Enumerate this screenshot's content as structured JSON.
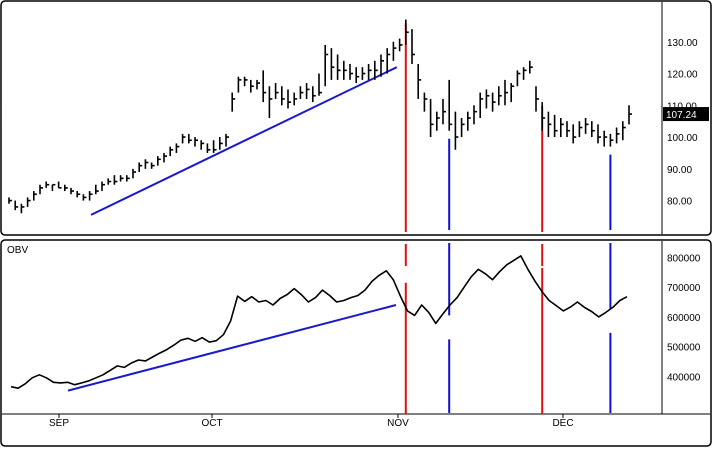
{
  "chart_data": [
    {
      "type": "ohlc",
      "panel": "price",
      "title": "",
      "last_price_label": "107.24",
      "y_ticks": [
        "80.00",
        "90.00",
        "100.00",
        "110.00",
        "120.00",
        "130.00"
      ],
      "ylim": [
        72,
        140
      ],
      "bars_per_month_note": null,
      "bars": [
        [
          81,
          79,
          80
        ],
        [
          80,
          77,
          78
        ],
        [
          79,
          76,
          78
        ],
        [
          81,
          78,
          80
        ],
        [
          83,
          80,
          82
        ],
        [
          85,
          82,
          84
        ],
        [
          86,
          84,
          85
        ],
        [
          85,
          83,
          85
        ],
        [
          86,
          84,
          84
        ],
        [
          85,
          83,
          84
        ],
        [
          84,
          82,
          83
        ],
        [
          83,
          81,
          82
        ],
        [
          82,
          80,
          81
        ],
        [
          83,
          80,
          82
        ],
        [
          85,
          82,
          83
        ],
        [
          86,
          83,
          85
        ],
        [
          87,
          85,
          86
        ],
        [
          88,
          85,
          86
        ],
        [
          88,
          86,
          87
        ],
        [
          88,
          86,
          87
        ],
        [
          90,
          87,
          89
        ],
        [
          92,
          89,
          91
        ],
        [
          93,
          90,
          92
        ],
        [
          92,
          90,
          91
        ],
        [
          94,
          91,
          93
        ],
        [
          95,
          92,
          94
        ],
        [
          97,
          94,
          96
        ],
        [
          98,
          95,
          97
        ],
        [
          101,
          98,
          100
        ],
        [
          101,
          98,
          99
        ],
        [
          100,
          97,
          99
        ],
        [
          99,
          96,
          98
        ],
        [
          98,
          95,
          96
        ],
        [
          99,
          95,
          96
        ],
        [
          100,
          96,
          98
        ],
        [
          101,
          97,
          100
        ],
        [
          114,
          108,
          112
        ],
        [
          119,
          114,
          118
        ],
        [
          119,
          116,
          118
        ],
        [
          118,
          114,
          116
        ],
        [
          118,
          115,
          117
        ],
        [
          121,
          111,
          114
        ],
        [
          116,
          106,
          112
        ],
        [
          117,
          112,
          114
        ],
        [
          116,
          110,
          112
        ],
        [
          115,
          109,
          111
        ],
        [
          114,
          110,
          112
        ],
        [
          116,
          112,
          114
        ],
        [
          117,
          112,
          115
        ],
        [
          116,
          111,
          113
        ],
        [
          120,
          113,
          114
        ],
        [
          129,
          116,
          126
        ],
        [
          128,
          118,
          122
        ],
        [
          126,
          118,
          121
        ],
        [
          124,
          118,
          121
        ],
        [
          123,
          118,
          120
        ],
        [
          122,
          117,
          119
        ],
        [
          122,
          118,
          120
        ],
        [
          123,
          118,
          121
        ],
        [
          124,
          118,
          121
        ],
        [
          126,
          119,
          124
        ],
        [
          128,
          120,
          126
        ],
        [
          130,
          124,
          128
        ],
        [
          131,
          127,
          129
        ],
        [
          137,
          129,
          133
        ],
        [
          134,
          123,
          126
        ],
        [
          123,
          112,
          118
        ],
        [
          114,
          108,
          112
        ],
        [
          112,
          100,
          104
        ],
        [
          108,
          102,
          106
        ],
        [
          112,
          104,
          108
        ],
        [
          118,
          102,
          104
        ],
        [
          108,
          96,
          100
        ],
        [
          106,
          100,
          104
        ],
        [
          108,
          102,
          106
        ],
        [
          110,
          104,
          108
        ],
        [
          114,
          106,
          112
        ],
        [
          115,
          109,
          113
        ],
        [
          114,
          108,
          111
        ],
        [
          116,
          110,
          113
        ],
        [
          118,
          110,
          114
        ],
        [
          117,
          111,
          116
        ],
        [
          121,
          116,
          120
        ],
        [
          122,
          118,
          121
        ],
        [
          124,
          120,
          122
        ],
        [
          116,
          108,
          112
        ],
        [
          111,
          102,
          106
        ],
        [
          108,
          100,
          104
        ],
        [
          107,
          100,
          102
        ],
        [
          106,
          100,
          104
        ],
        [
          105,
          100,
          102
        ],
        [
          104,
          98,
          100
        ],
        [
          105,
          100,
          103
        ],
        [
          106,
          101,
          104
        ],
        [
          105,
          100,
          102
        ],
        [
          104,
          98,
          100
        ],
        [
          102,
          97,
          100
        ],
        [
          101,
          97,
          99
        ],
        [
          103,
          98,
          101
        ],
        [
          105,
          99,
          103
        ],
        [
          110,
          104,
          107.24
        ]
      ],
      "trendline": {
        "from": [
          0,
          75.5
        ],
        "to": [
          59,
          122
        ],
        "color": "#1a1acc"
      },
      "markers": [
        {
          "type": "peak",
          "bar": 64,
          "color": "#e01010"
        },
        {
          "type": "trough",
          "bar": 71,
          "color": "#1010d0"
        },
        {
          "type": "peak",
          "bar": 86,
          "color": "#e01010"
        },
        {
          "type": "trough",
          "bar": 97,
          "color": "#1010d0"
        }
      ]
    },
    {
      "type": "line",
      "panel": "indicator",
      "label": "OBV",
      "y_ticks": [
        "400000",
        "500000",
        "600000",
        "700000",
        "800000"
      ],
      "ylim": [
        280000,
        825000
      ],
      "x_ticks": [
        "SEP",
        "OCT",
        "NOV",
        "DEC"
      ],
      "values": [
        365000,
        360000,
        375000,
        395000,
        405000,
        395000,
        380000,
        378000,
        380000,
        372000,
        378000,
        385000,
        395000,
        405000,
        420000,
        435000,
        430000,
        445000,
        455000,
        452000,
        465000,
        478000,
        490000,
        505000,
        522000,
        528000,
        518000,
        530000,
        515000,
        520000,
        540000,
        585000,
        670000,
        652000,
        668000,
        650000,
        655000,
        640000,
        662000,
        675000,
        695000,
        675000,
        650000,
        665000,
        690000,
        672000,
        650000,
        655000,
        665000,
        672000,
        690000,
        720000,
        740000,
        755000,
        725000,
        670000,
        620000,
        605000,
        640000,
        615000,
        578000,
        610000,
        640000,
        665000,
        700000,
        735000,
        760000,
        745000,
        725000,
        752000,
        775000,
        790000,
        805000,
        760000,
        720000,
        685000,
        655000,
        638000,
        620000,
        633000,
        650000,
        632000,
        618000,
        600000,
        615000,
        632000,
        655000,
        668000
      ],
      "trendline": {
        "from": [
          0,
          352000
        ],
        "to": [
          56,
          640000
        ],
        "color": "#1a1acc"
      },
      "markers": [
        {
          "type": "peak",
          "point": 53,
          "color": "#e01010"
        },
        {
          "type": "trough",
          "point": 60,
          "color": "#1010d0"
        },
        {
          "type": "peak",
          "point": 72,
          "color": "#e01010"
        },
        {
          "type": "trough",
          "point": 83,
          "color": "#1010d0"
        }
      ]
    }
  ]
}
